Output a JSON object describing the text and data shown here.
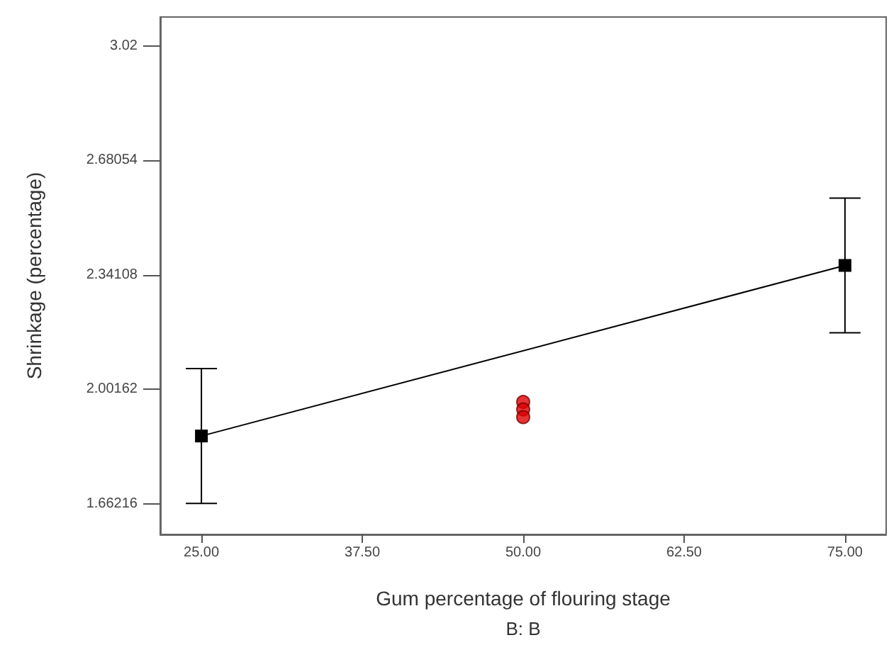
{
  "chart_data": {
    "type": "line",
    "xlabel": "Gum percentage of flouring stage",
    "ylabel": "Shrinkage (percentage)",
    "annotations": [
      "B: B"
    ],
    "xlim": [
      21.8,
      78.2
    ],
    "xticks": [
      {
        "value": 25,
        "label": "25.00"
      },
      {
        "value": 37.5,
        "label": "37.50"
      },
      {
        "value": 50,
        "label": "50.00"
      },
      {
        "value": 62.5,
        "label": "62.50"
      },
      {
        "value": 75,
        "label": "75.00"
      }
    ],
    "ylim": [
      1.571,
      3.106
    ],
    "yticks": [
      1.66216,
      2.00162,
      2.34108,
      2.68054,
      {
        "value": 3.02,
        "label": "3.02"
      }
    ],
    "grid": false,
    "series": [
      {
        "color": "#000000",
        "x": [
          25,
          75
        ],
        "values": [
          1.863,
          2.369
        ],
        "errors": [
          0.2,
          0.2
        ],
        "marker": "square"
      },
      {
        "type": "scatter",
        "color": "#e00000",
        "x": [
          50,
          50,
          50
        ],
        "values": [
          1.964,
          1.942,
          1.919
        ],
        "marker": "circle"
      }
    ]
  }
}
